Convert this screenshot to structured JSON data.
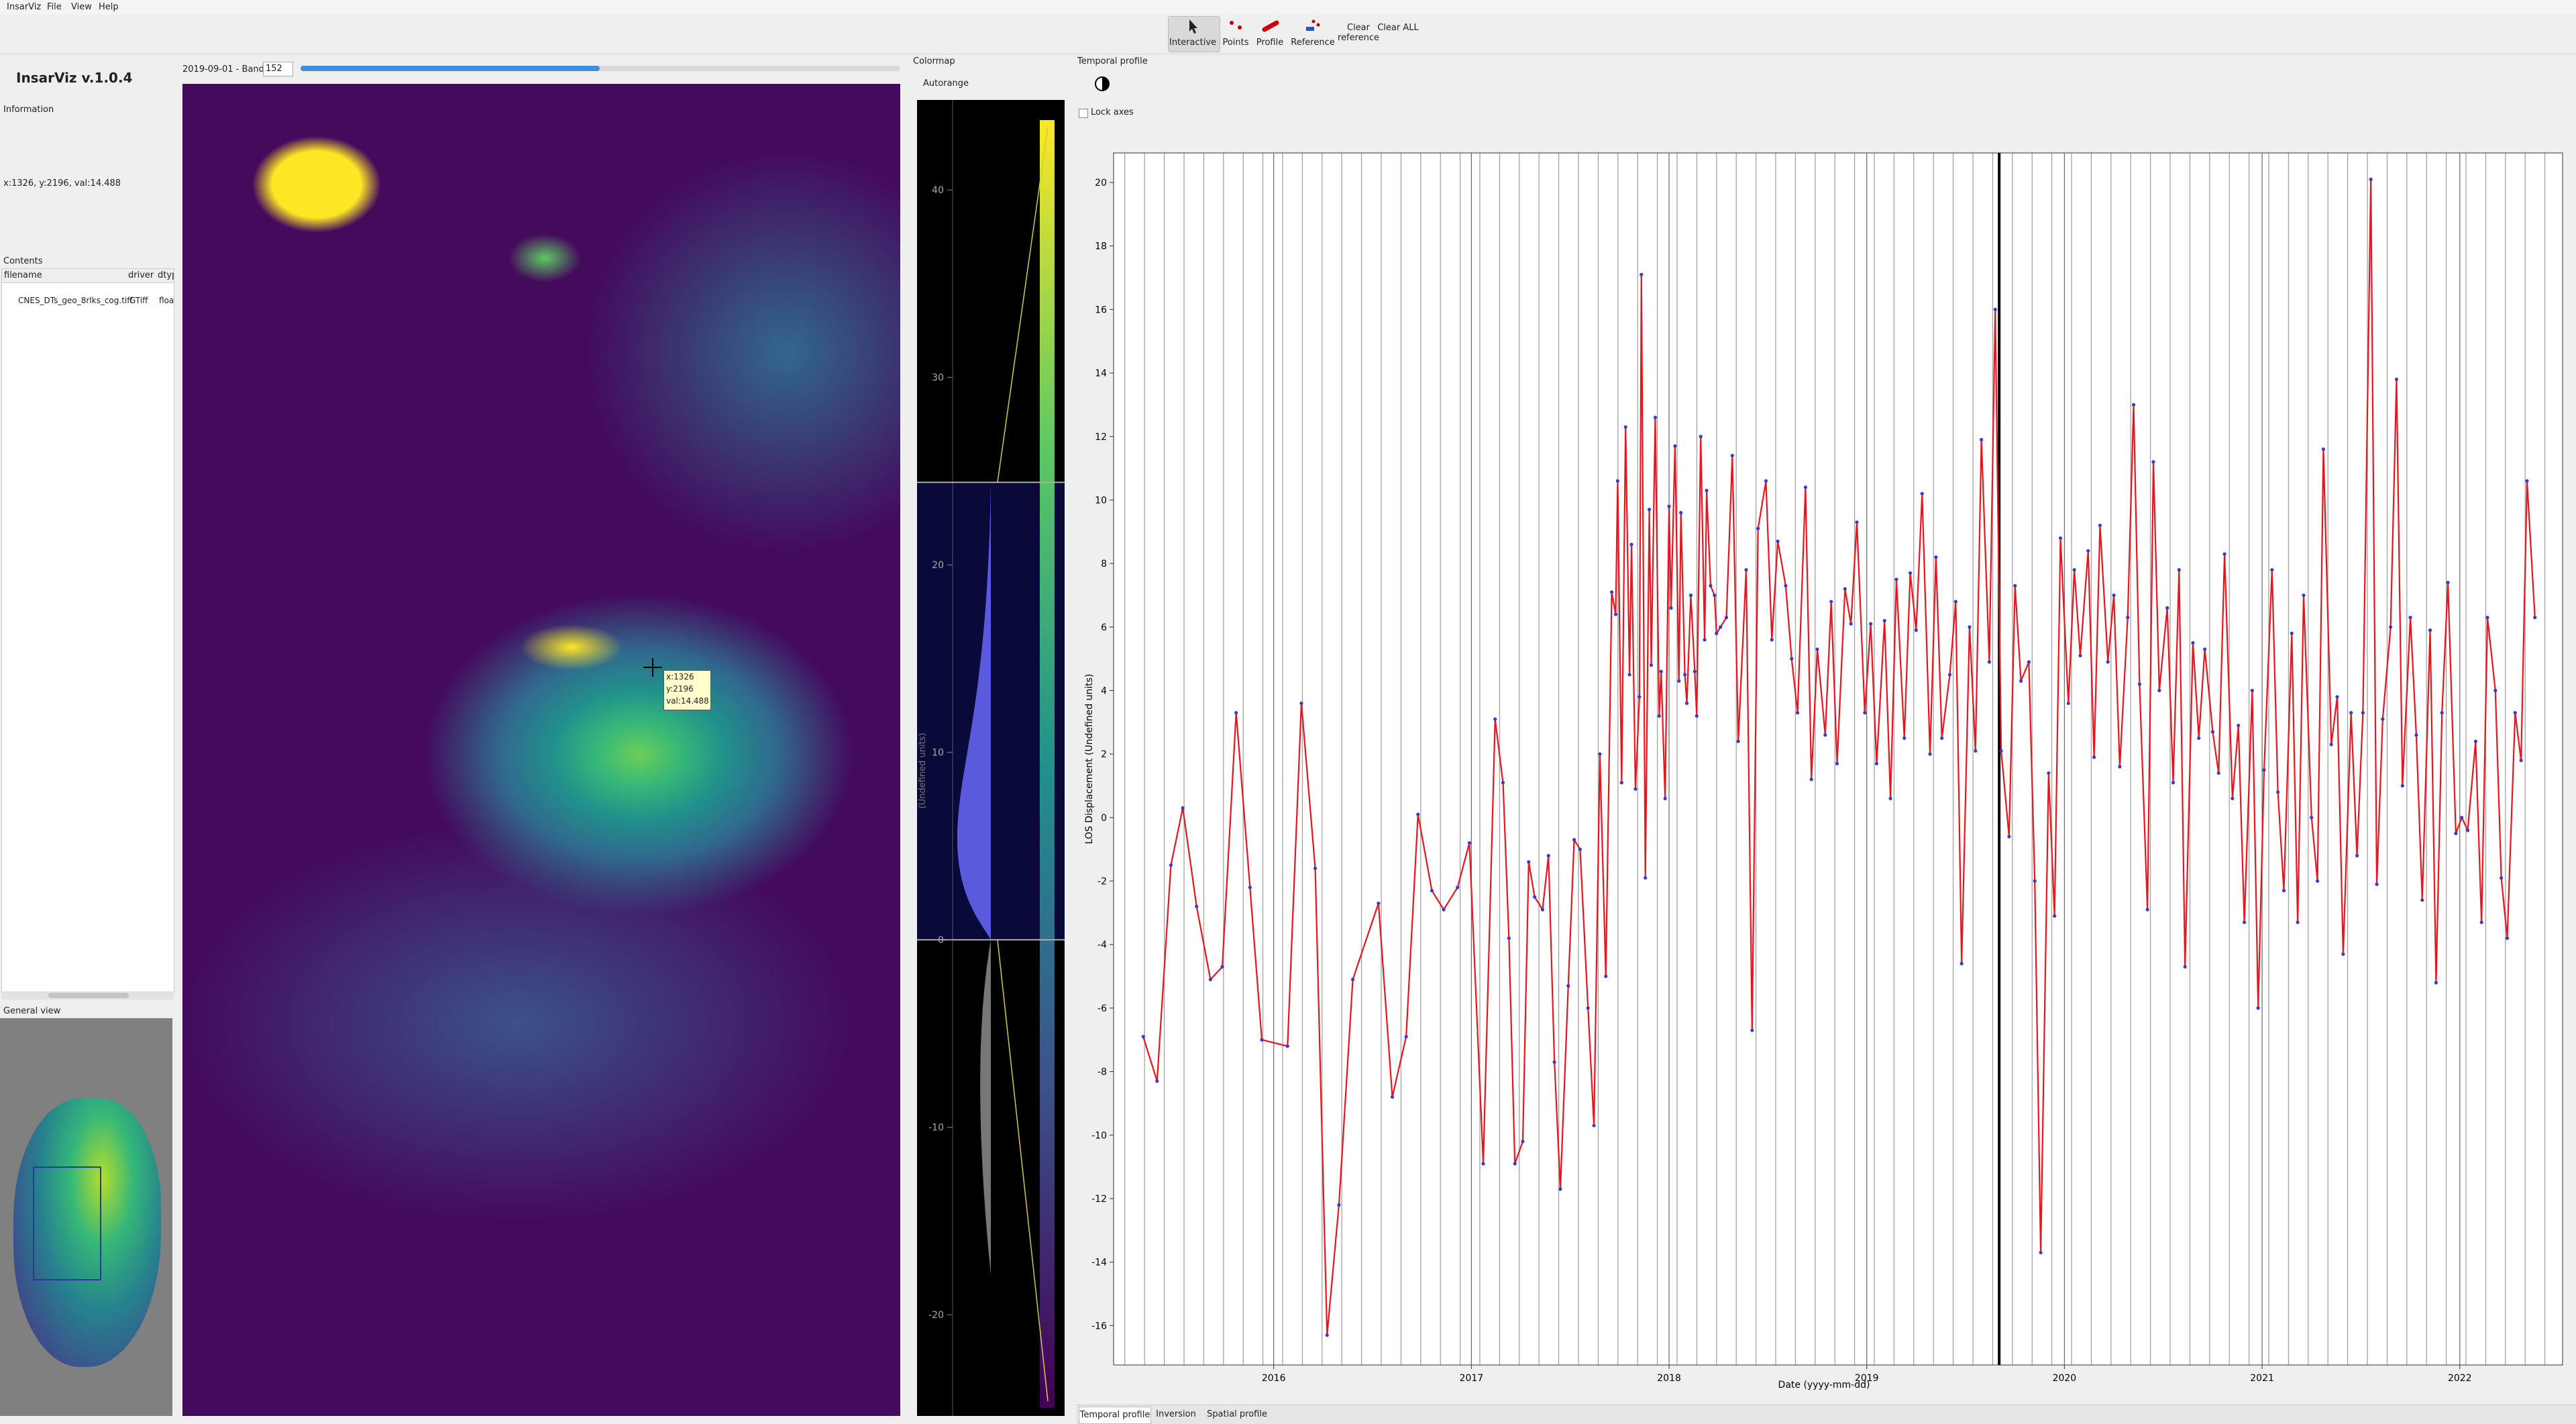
{
  "menu": [
    "InsarViz",
    "File",
    "View",
    "Help"
  ],
  "toolbar": [
    "Interactive",
    "Points",
    "Profile",
    "Reference",
    "Clear reference",
    "Clear ALL"
  ],
  "info": {
    "title": "InsarViz v.1.0.4",
    "section": "Information",
    "cursor": "x:1326, y:2196, val:14.488"
  },
  "contents": {
    "title": "Contents",
    "headers": [
      "filename",
      "driver",
      "dtyp"
    ],
    "rows": [
      [
        "CNES_DTs_geo_8rlks_cog.tiff",
        "GTiff",
        "floa"
      ]
    ]
  },
  "general_view": "General view",
  "map": {
    "date_label": "2019-09-01 - Band #",
    "band": 152,
    "tooltip": [
      "x:1326",
      "y:2196",
      "val:14.488"
    ]
  },
  "colormap": {
    "title": "Colormap",
    "autorange": "Autorange",
    "axis_label": "(Undefined units)",
    "lim": [
      -25.4,
      44.8
    ],
    "ticks": [
      40,
      30,
      20,
      10,
      0,
      -10,
      -20
    ],
    "range": [
      0,
      24.4
    ]
  },
  "temporal_profile": {
    "title": "Temporal profile",
    "lock_axes": "Lock axes"
  },
  "tabs": [
    "Temporal profile",
    "Inversion",
    "Spatial profile"
  ],
  "chart_data": {
    "type": "line",
    "xlabel": "Date (yyyy-mm-dd)",
    "ylabel": "LOS Displacement (Undefined units)",
    "x": [
      2015.34,
      2015.41,
      2015.48,
      2015.54,
      2015.61,
      2015.68,
      2015.74,
      2015.81,
      2015.88,
      2015.94,
      2016.07,
      2016.14,
      2016.21,
      2016.27,
      2016.33,
      2016.4,
      2016.53,
      2016.6,
      2016.67,
      2016.73,
      2016.8,
      2016.86,
      2016.93,
      2016.99,
      2017.06,
      2017.12,
      2017.16,
      2017.19,
      2017.22,
      2017.26,
      2017.29,
      2017.32,
      2017.36,
      2017.39,
      2017.42,
      2017.45,
      2017.49,
      2017.52,
      2017.55,
      2017.59,
      2017.62,
      2017.65,
      2017.68,
      2017.71,
      2017.73,
      2017.74,
      2017.76,
      2017.78,
      2017.8,
      2017.81,
      2017.83,
      2017.85,
      2017.86,
      2017.88,
      2017.9,
      2017.91,
      2017.93,
      2017.95,
      2017.96,
      2017.98,
      2018.0,
      2018.01,
      2018.03,
      2018.05,
      2018.06,
      2018.08,
      2018.09,
      2018.11,
      2018.13,
      2018.14,
      2018.16,
      2018.18,
      2018.19,
      2018.21,
      2018.23,
      2018.24,
      2018.26,
      2018.29,
      2018.32,
      2018.35,
      2018.39,
      2018.42,
      2018.45,
      2018.49,
      2018.52,
      2018.55,
      2018.59,
      2018.62,
      2018.65,
      2018.69,
      2018.72,
      2018.75,
      2018.79,
      2018.82,
      2018.85,
      2018.89,
      2018.92,
      2018.95,
      2018.99,
      2019.02,
      2019.05,
      2019.09,
      2019.12,
      2019.15,
      2019.19,
      2019.22,
      2019.25,
      2019.28,
      2019.32,
      2019.35,
      2019.38,
      2019.42,
      2019.45,
      2019.48,
      2019.52,
      2019.55,
      2019.58,
      2019.62,
      2019.65,
      2019.68,
      2019.72,
      2019.75,
      2019.78,
      2019.82,
      2019.85,
      2019.88,
      2019.92,
      2019.95,
      2019.98,
      2020.02,
      2020.05,
      2020.08,
      2020.12,
      2020.15,
      2020.18,
      2020.22,
      2020.25,
      2020.28,
      2020.32,
      2020.35,
      2020.38,
      2020.42,
      2020.45,
      2020.48,
      2020.52,
      2020.55,
      2020.58,
      2020.61,
      2020.65,
      2020.68,
      2020.71,
      2020.75,
      2020.78,
      2020.81,
      2020.85,
      2020.88,
      2020.91,
      2020.95,
      2020.98,
      2021.01,
      2021.05,
      2021.08,
      2021.11,
      2021.15,
      2021.18,
      2021.21,
      2021.25,
      2021.28,
      2021.31,
      2021.35,
      2021.38,
      2021.41,
      2021.45,
      2021.48,
      2021.51,
      2021.55,
      2021.58,
      2021.61,
      2021.65,
      2021.68,
      2021.71,
      2021.75,
      2021.78,
      2021.81,
      2021.85,
      2021.88,
      2021.91,
      2021.94,
      2021.98,
      2022.01,
      2022.04,
      2022.08,
      2022.11,
      2022.14,
      2022.18,
      2022.21,
      2022.24,
      2022.28,
      2022.31,
      2022.34,
      2022.38
    ],
    "values": [
      -6.9,
      -8.3,
      -1.5,
      0.3,
      -2.8,
      -5.1,
      -4.7,
      3.3,
      -2.2,
      -7.0,
      -7.2,
      3.6,
      -1.6,
      -16.3,
      -12.2,
      -5.1,
      -2.7,
      -8.8,
      -6.9,
      0.1,
      -2.3,
      -2.9,
      -2.2,
      -0.8,
      -10.9,
      3.1,
      1.1,
      -3.8,
      -10.9,
      -10.2,
      -1.4,
      -2.5,
      -2.9,
      -1.2,
      -7.7,
      -11.7,
      -5.3,
      -0.7,
      -1.0,
      -6.0,
      -9.7,
      2.0,
      -5.0,
      7.1,
      6.4,
      10.6,
      1.1,
      12.3,
      4.5,
      8.6,
      0.9,
      3.8,
      17.1,
      -1.9,
      9.7,
      4.8,
      12.6,
      3.2,
      4.6,
      0.6,
      9.8,
      6.6,
      11.7,
      4.3,
      9.6,
      4.5,
      3.6,
      7.0,
      4.6,
      3.2,
      12.0,
      5.6,
      10.3,
      7.3,
      7.0,
      5.8,
      6.0,
      6.3,
      11.4,
      2.4,
      7.8,
      -6.7,
      9.1,
      10.6,
      5.6,
      8.7,
      7.3,
      5.0,
      3.3,
      10.4,
      1.2,
      5.3,
      2.6,
      6.8,
      1.7,
      7.2,
      6.1,
      9.3,
      3.3,
      6.1,
      1.7,
      6.2,
      0.6,
      7.5,
      2.5,
      7.7,
      5.9,
      10.2,
      2.0,
      8.2,
      2.5,
      4.5,
      6.8,
      -4.6,
      6.0,
      2.1,
      11.9,
      4.9,
      16.0,
      2.1,
      -0.6,
      7.3,
      4.3,
      4.9,
      -2.0,
      -13.7,
      1.4,
      -3.1,
      8.8,
      3.6,
      7.8,
      5.1,
      8.4,
      1.9,
      9.2,
      4.9,
      7.0,
      1.6,
      6.3,
      13.0,
      4.2,
      -2.9,
      11.2,
      4.0,
      6.6,
      1.1,
      7.8,
      -4.7,
      5.5,
      2.5,
      5.3,
      2.7,
      1.4,
      8.3,
      0.6,
      2.9,
      -3.3,
      4.0,
      -6.0,
      1.5,
      7.8,
      0.8,
      -2.3,
      5.8,
      -3.3,
      7.0,
      0.0,
      -2.0,
      11.6,
      2.3,
      3.8,
      -4.3,
      3.3,
      -1.2,
      3.3,
      20.1,
      -2.1,
      3.1,
      6.0,
      13.8,
      1.0,
      6.3,
      2.6,
      -2.6,
      5.9,
      -5.2,
      3.3,
      7.4,
      -0.5,
      0.0,
      -0.4,
      2.4,
      -3.3,
      6.3,
      4.0,
      -1.9,
      -3.8,
      3.3,
      1.8,
      10.6,
      6.3
    ],
    "color": "#e8141e",
    "marker_color": "#3a3acc",
    "xlim": [
      2015.19,
      2022.52
    ],
    "ylim": [
      -17.24,
      20.93
    ],
    "xticks": [
      2016,
      2017,
      2018,
      2019,
      2020,
      2021,
      2022
    ],
    "yticks": [
      -16,
      -14,
      -12,
      -10,
      -8,
      -6,
      -4,
      -2,
      0,
      2,
      4,
      6,
      8,
      10,
      12,
      14,
      16,
      18,
      20
    ],
    "current_x": 2019.67
  }
}
